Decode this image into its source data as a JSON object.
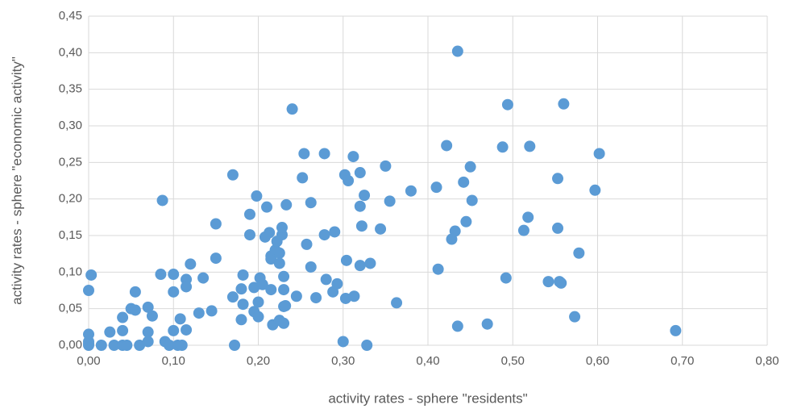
{
  "chart_data": {
    "type": "scatter",
    "x_label": "activity rates - sphere \"residents\"",
    "y_label": "activity rates - sphere \"economic activity\"",
    "color": "#5b9bd5",
    "grid": true,
    "xlim": [
      0,
      0.8
    ],
    "ylim": [
      0,
      0.45
    ],
    "xticks": [
      {
        "value": 0,
        "label": "0,00"
      },
      {
        "value": 0.1,
        "label": "0,10"
      },
      {
        "value": 0.2,
        "label": "0,20"
      },
      {
        "value": 0.3,
        "label": "0,30"
      },
      {
        "value": 0.4,
        "label": "0,40"
      },
      {
        "value": 0.5,
        "label": "0,50"
      },
      {
        "value": 0.6,
        "label": "0,60"
      },
      {
        "value": 0.7,
        "label": "0,70"
      },
      {
        "value": 0.8,
        "label": "0,80"
      }
    ],
    "yticks": [
      {
        "value": 0,
        "label": "0,00"
      },
      {
        "value": 0.05,
        "label": "0,05"
      },
      {
        "value": 0.1,
        "label": "0,10"
      },
      {
        "value": 0.15,
        "label": "0,15"
      },
      {
        "value": 0.2,
        "label": "0,20"
      },
      {
        "value": 0.25,
        "label": "0,25"
      },
      {
        "value": 0.3,
        "label": "0,30"
      },
      {
        "value": 0.35,
        "label": "0,35"
      },
      {
        "value": 0.4,
        "label": "0,40"
      },
      {
        "value": 0.45,
        "label": "0,45"
      }
    ],
    "x": [
      0.0,
      0.003,
      0.0,
      0.0,
      0.0,
      0.0,
      0.015,
      0.025,
      0.03,
      0.04,
      0.04,
      0.04,
      0.045,
      0.05,
      0.055,
      0.055,
      0.06,
      0.07,
      0.07,
      0.07,
      0.075,
      0.085,
      0.087,
      0.09,
      0.095,
      0.1,
      0.1,
      0.1,
      0.105,
      0.108,
      0.11,
      0.115,
      0.115,
      0.115,
      0.12,
      0.13,
      0.135,
      0.145,
      0.15,
      0.15,
      0.17,
      0.17,
      0.172,
      0.18,
      0.18,
      0.182,
      0.182,
      0.19,
      0.19,
      0.195,
      0.195,
      0.198,
      0.2,
      0.2,
      0.202,
      0.205,
      0.208,
      0.21,
      0.213,
      0.215,
      0.215,
      0.215,
      0.217,
      0.22,
      0.222,
      0.225,
      0.225,
      0.225,
      0.228,
      0.228,
      0.23,
      0.23,
      0.23,
      0.23,
      0.232,
      0.233,
      0.24,
      0.245,
      0.252,
      0.254,
      0.257,
      0.262,
      0.262,
      0.268,
      0.278,
      0.278,
      0.28,
      0.288,
      0.29,
      0.293,
      0.3,
      0.302,
      0.303,
      0.304,
      0.306,
      0.312,
      0.313,
      0.32,
      0.32,
      0.32,
      0.322,
      0.325,
      0.328,
      0.332,
      0.344,
      0.35,
      0.355,
      0.363,
      0.38,
      0.41,
      0.412,
      0.422,
      0.428,
      0.432,
      0.435,
      0.435,
      0.442,
      0.445,
      0.45,
      0.452,
      0.47,
      0.488,
      0.492,
      0.494,
      0.513,
      0.518,
      0.52,
      0.542,
      0.553,
      0.553,
      0.555,
      0.557,
      0.56,
      0.573,
      0.578,
      0.597,
      0.602,
      0.692
    ],
    "values": [
      0.075,
      0.096,
      0.015,
      0.005,
      0.0,
      0.002,
      0.0,
      0.018,
      0.0,
      0.038,
      0.02,
      0.0,
      0.0,
      0.05,
      0.073,
      0.048,
      0.0,
      0.052,
      0.018,
      0.005,
      0.04,
      0.097,
      0.198,
      0.005,
      0.0,
      0.097,
      0.073,
      0.02,
      0.0,
      0.036,
      0.0,
      0.09,
      0.08,
      0.021,
      0.111,
      0.044,
      0.092,
      0.047,
      0.119,
      0.166,
      0.233,
      0.066,
      0.0,
      0.035,
      0.077,
      0.096,
      0.056,
      0.151,
      0.179,
      0.079,
      0.046,
      0.204,
      0.059,
      0.039,
      0.092,
      0.083,
      0.148,
      0.189,
      0.154,
      0.122,
      0.118,
      0.076,
      0.028,
      0.13,
      0.142,
      0.126,
      0.112,
      0.034,
      0.151,
      0.161,
      0.094,
      0.076,
      0.053,
      0.03,
      0.054,
      0.192,
      0.323,
      0.067,
      0.229,
      0.262,
      0.138,
      0.195,
      0.107,
      0.065,
      0.262,
      0.151,
      0.09,
      0.073,
      0.155,
      0.084,
      0.005,
      0.233,
      0.064,
      0.116,
      0.225,
      0.258,
      0.067,
      0.236,
      0.19,
      0.109,
      0.163,
      0.205,
      0.0,
      0.112,
      0.159,
      0.245,
      0.197,
      0.058,
      0.211,
      0.216,
      0.104,
      0.273,
      0.145,
      0.156,
      0.402,
      0.026,
      0.223,
      0.169,
      0.244,
      0.198,
      0.029,
      0.271,
      0.092,
      0.329,
      0.157,
      0.175,
      0.272,
      0.087,
      0.228,
      0.16,
      0.087,
      0.085,
      0.33,
      0.039,
      0.126,
      0.212,
      0.262,
      0.02
    ]
  }
}
